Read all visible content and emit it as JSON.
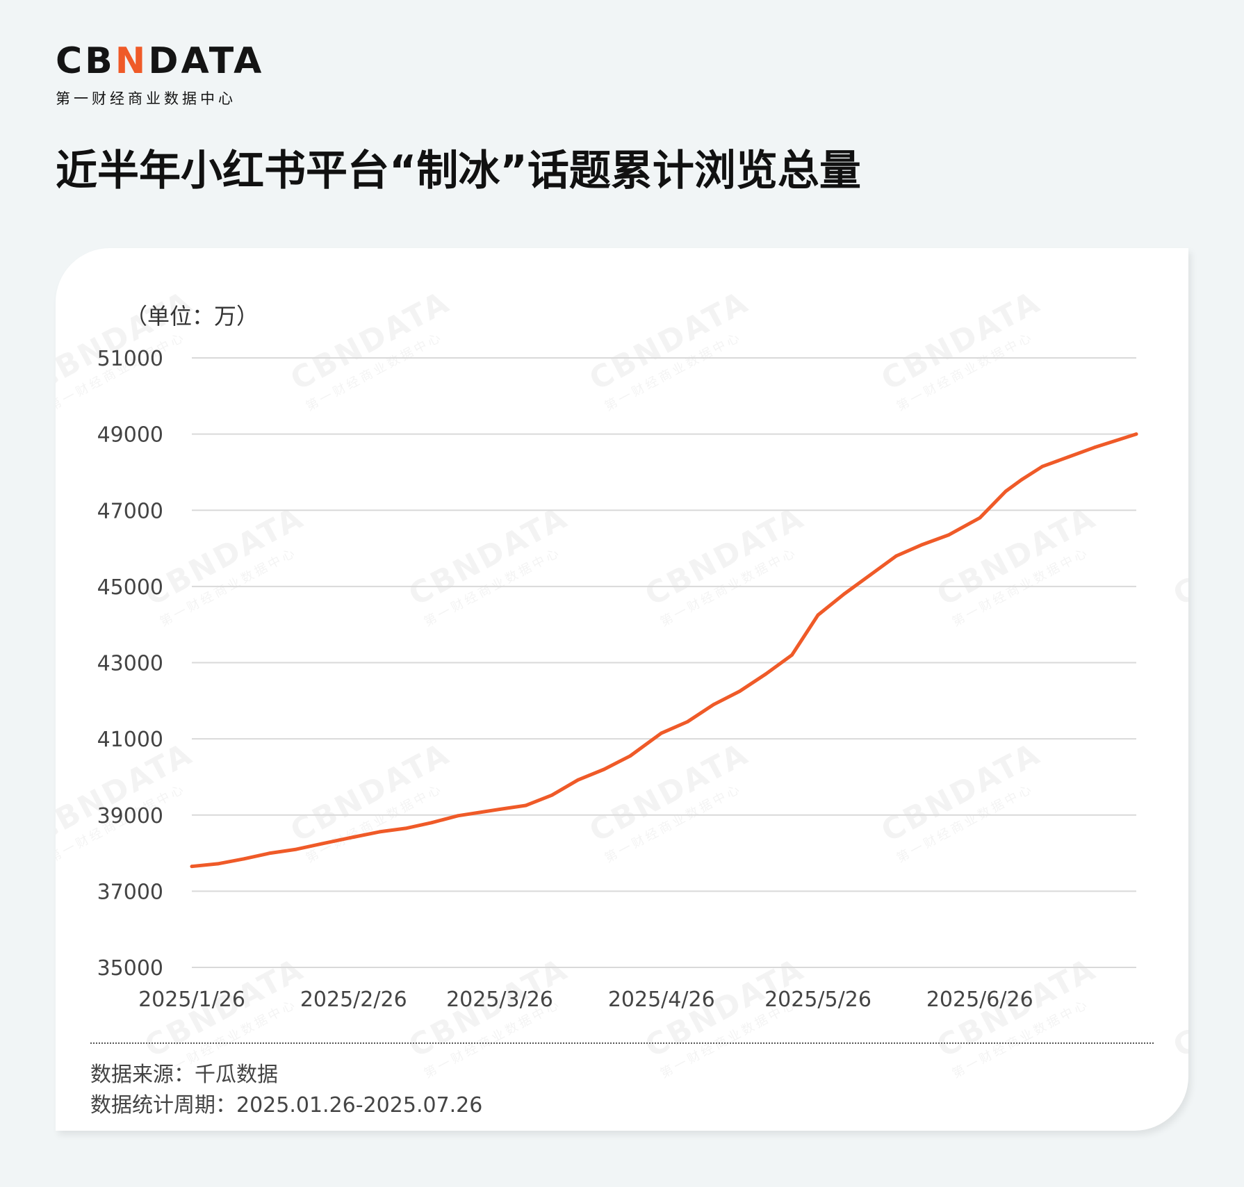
{
  "logo": {
    "part1": "CB",
    "part2": "N",
    "part3": "DATA",
    "tagline": "第一财经商业数据中心"
  },
  "title": "近半年小红书平台“制冰”话题累计浏览总量",
  "unit": "（单位：万）",
  "colors": {
    "accent": "#ef5a28",
    "line": "#ef5a28",
    "grid": "#d9d9d9",
    "axis_text": "#444444"
  },
  "chart_data": {
    "type": "line",
    "title": "",
    "xlabel": "",
    "ylabel": "（单位：万）",
    "ylim": [
      35000,
      51000
    ],
    "yticks": [
      35000,
      37000,
      39000,
      41000,
      43000,
      45000,
      47000,
      49000,
      51000
    ],
    "xticks": [
      "2025/1/26",
      "2025/2/26",
      "2025/3/26",
      "2025/4/26",
      "2025/5/26",
      "2025/6/26"
    ],
    "xrange": [
      "2025-01-26",
      "2025-07-26"
    ],
    "grid": true,
    "series": [
      {
        "name": "",
        "x": [
          "2025-01-26",
          "2025-01-31",
          "2025-02-05",
          "2025-02-10",
          "2025-02-15",
          "2025-02-20",
          "2025-02-26",
          "2025-03-03",
          "2025-03-08",
          "2025-03-13",
          "2025-03-18",
          "2025-03-26",
          "2025-03-31",
          "2025-04-05",
          "2025-04-10",
          "2025-04-15",
          "2025-04-20",
          "2025-04-26",
          "2025-05-01",
          "2025-05-06",
          "2025-05-11",
          "2025-05-16",
          "2025-05-21",
          "2025-05-26",
          "2025-05-31",
          "2025-06-05",
          "2025-06-10",
          "2025-06-15",
          "2025-06-20",
          "2025-06-26",
          "2025-07-01",
          "2025-07-04",
          "2025-07-08",
          "2025-07-13",
          "2025-07-18",
          "2025-07-26"
        ],
        "y": [
          37650,
          37720,
          37850,
          38000,
          38100,
          38250,
          38420,
          38560,
          38650,
          38800,
          38980,
          39150,
          39250,
          39520,
          39920,
          40200,
          40550,
          41150,
          41450,
          41900,
          42250,
          42700,
          43200,
          44250,
          44800,
          45300,
          45800,
          46100,
          46350,
          46800,
          47500,
          47800,
          48150,
          48400,
          48650,
          49000
        ]
      }
    ]
  },
  "footer": {
    "source": "数据来源：千瓜数据",
    "period": "数据统计周期：2025.01.26-2025.07.26"
  }
}
